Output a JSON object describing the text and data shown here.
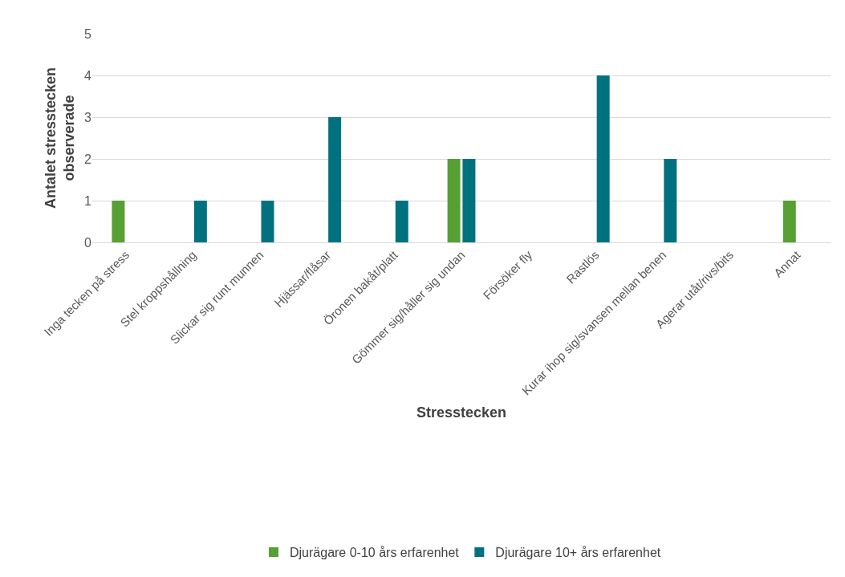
{
  "chart_data": {
    "type": "bar",
    "xlabel": "Stresstecken",
    "ylabel": "Antalet stresstecken observerade",
    "categories": [
      "Inga tecken på stress",
      "Stel kroppshållning",
      "Slickar sig runt munnen",
      "Hjässar/flåsar",
      "Öronen bakåt/platt",
      "Gömmer sig/håller sig undan",
      "Försöker fly",
      "Rastlös",
      "Kurar ihop sig/svansen mellan benen",
      "Agerar utåt/rivs/bits",
      "Annat"
    ],
    "series": [
      {
        "name": "Djurägare 0-10 års erfarenhet",
        "color": "#57a033",
        "values": [
          1,
          0,
          0,
          0,
          0,
          2,
          0,
          0,
          0,
          0,
          1
        ]
      },
      {
        "name": "Djurägare 10+ års erfarenhet",
        "color": "#00727f",
        "values": [
          0,
          1,
          1,
          3,
          1,
          2,
          0,
          4,
          2,
          0,
          0
        ]
      }
    ],
    "ylim": [
      0,
      5
    ],
    "yticks": [
      0,
      1,
      2,
      3,
      4,
      5
    ],
    "grid": "y",
    "legend": "bottom"
  }
}
